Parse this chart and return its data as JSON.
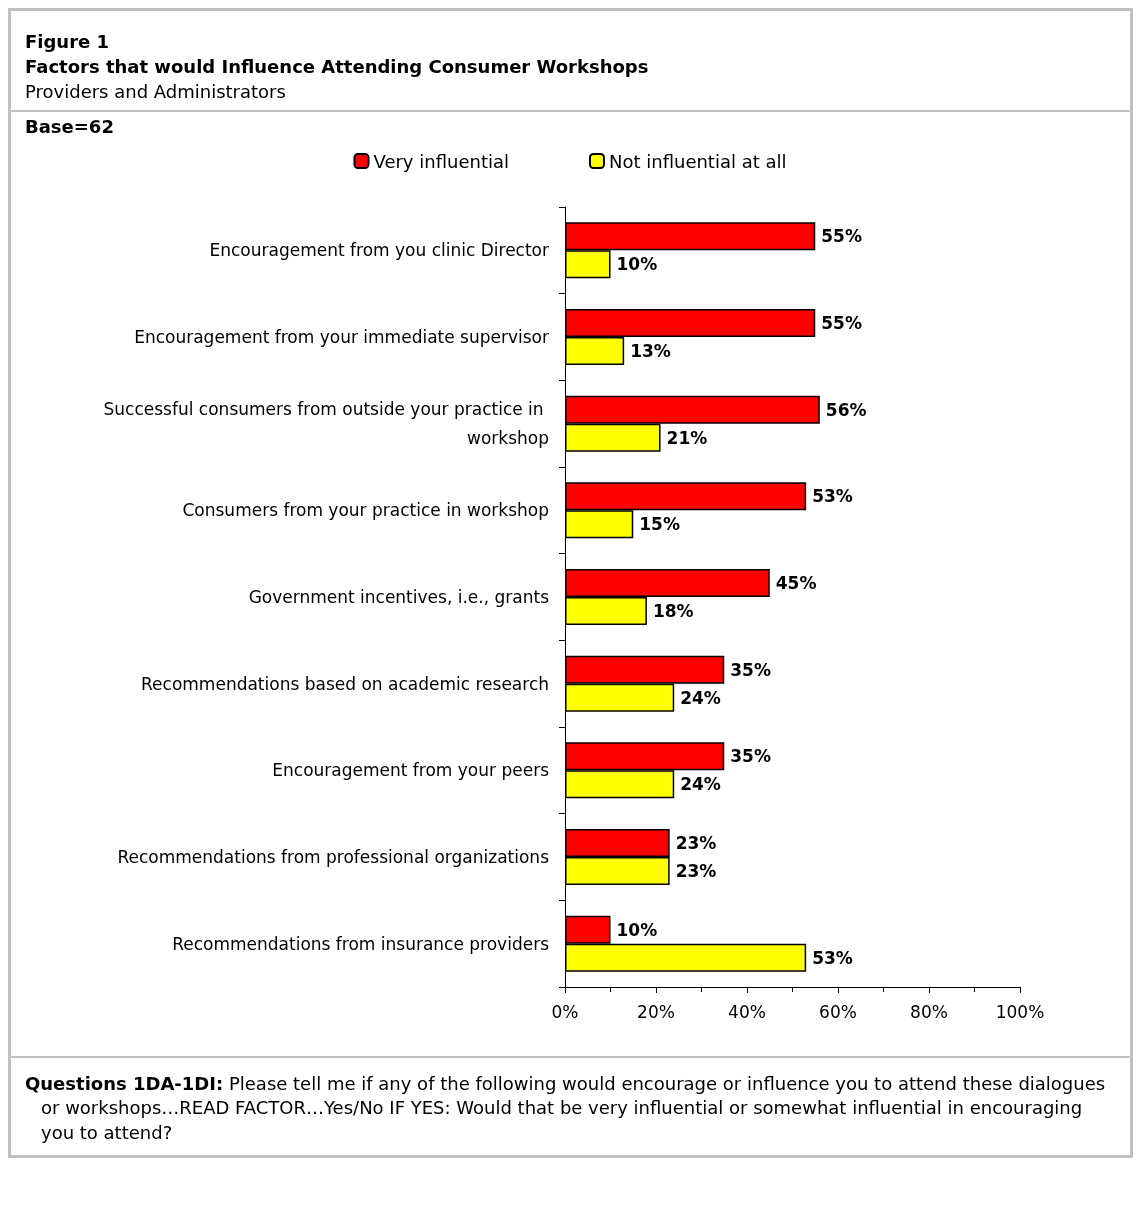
{
  "chart_data": {
    "type": "bar",
    "orientation": "horizontal",
    "title": "Figure 1",
    "subtitle": "Factors that would Influence Attending Consumer Workshops",
    "annotations": [
      "Providers and Administrators",
      "Base=62",
      "Questions 1DA-1DI:  Please tell me if any of the following would encourage or influence you to attend these dialogues or workshops…READ FACTOR…Yes/No  IF YES: Would that be very influential or somewhat influential in encouraging you to attend?"
    ],
    "categories": [
      "Encouragement from you clinic Director",
      "Encouragement from your immediate supervisor",
      "Successful consumers from outside your practice in workshop",
      "Consumers from your practice in workshop",
      "Government incentives, i.e., grants",
      "Recommendations based on academic research",
      "Encouragement from your peers",
      "Recommendations from professional organizations",
      "Recommendations from insurance providers"
    ],
    "series": [
      {
        "name": "Very influential",
        "color": "#ff0000",
        "values": [
          55,
          55,
          56,
          53,
          45,
          35,
          35,
          23,
          10
        ],
        "value_labels": [
          "55%",
          "55%",
          "56%",
          "53%",
          "45%",
          "35%",
          "35%",
          "23%",
          "10%"
        ]
      },
      {
        "name": "Not influential at all",
        "color": "#ffff00",
        "values": [
          10,
          13,
          21,
          15,
          18,
          24,
          24,
          23,
          53
        ],
        "value_labels": [
          "10%",
          "13%",
          "21%",
          "15%",
          "18%",
          "24%",
          "24%",
          "23%",
          "53%"
        ]
      }
    ],
    "xlim": [
      0,
      100
    ],
    "xticks": [
      {
        "value": 0,
        "label": "0%"
      },
      {
        "value": 20,
        "label": "20%"
      },
      {
        "value": 40,
        "label": "40%"
      },
      {
        "value": 60,
        "label": "60%"
      },
      {
        "value": 80,
        "label": "80%"
      },
      {
        "value": 100,
        "label": "100%"
      }
    ],
    "grid": false,
    "legend": "top"
  }
}
